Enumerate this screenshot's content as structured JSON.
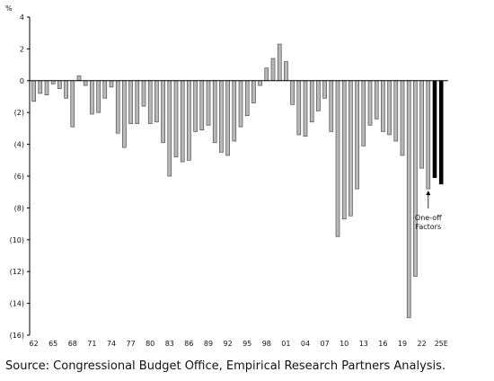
{
  "chart_data": {
    "type": "bar",
    "title": "",
    "ylabel": "%",
    "ylim": [
      -16,
      4
    ],
    "y_ticks": [
      4,
      2,
      0,
      -2,
      -4,
      -6,
      -8,
      -10,
      -12,
      -14,
      -16
    ],
    "y_tick_labels": [
      "4",
      "2",
      "0",
      "(2)",
      "(4)",
      "(6)",
      "(8)",
      "(10)",
      "(12)",
      "(14)",
      "(16)"
    ],
    "x_tick_labels": [
      "62",
      "65",
      "68",
      "71",
      "74",
      "77",
      "80",
      "83",
      "86",
      "89",
      "92",
      "95",
      "98",
      "01",
      "04",
      "07",
      "10",
      "13",
      "16",
      "19",
      "22",
      "25E"
    ],
    "categories": [
      "62",
      "63",
      "64",
      "65",
      "66",
      "67",
      "68",
      "69",
      "70",
      "71",
      "72",
      "73",
      "74",
      "75",
      "76",
      "77",
      "78",
      "79",
      "80",
      "81",
      "82",
      "83",
      "84",
      "85",
      "86",
      "87",
      "88",
      "89",
      "90",
      "91",
      "92",
      "93",
      "94",
      "95",
      "96",
      "97",
      "98",
      "99",
      "00",
      "01",
      "02",
      "03",
      "04",
      "05",
      "06",
      "07",
      "08",
      "09",
      "10",
      "11",
      "12",
      "13",
      "14",
      "15",
      "16",
      "17",
      "18",
      "19",
      "20",
      "21",
      "22",
      "23",
      "24",
      "25E"
    ],
    "values": [
      -1.3,
      -0.8,
      -0.9,
      -0.2,
      -0.5,
      -1.1,
      -2.9,
      0.3,
      -0.3,
      -2.1,
      -2.0,
      -1.1,
      -0.4,
      -3.3,
      -4.2,
      -2.7,
      -2.7,
      -1.6,
      -2.7,
      -2.6,
      -3.9,
      -6.0,
      -4.8,
      -5.1,
      -5.0,
      -3.2,
      -3.1,
      -2.8,
      -3.9,
      -4.5,
      -4.7,
      -3.8,
      -2.9,
      -2.2,
      -1.4,
      -0.3,
      0.8,
      1.4,
      2.3,
      1.2,
      -1.5,
      -3.4,
      -3.5,
      -2.6,
      -1.9,
      -1.1,
      -3.2,
      -9.8,
      -8.7,
      -8.5,
      -6.8,
      -4.1,
      -2.8,
      -2.4,
      -3.2,
      -3.4,
      -3.8,
      -4.7,
      -14.9,
      -12.3,
      -5.5,
      -6.8,
      -6.1,
      -6.5
    ],
    "series_colors": {
      "default": "#b8b8b8",
      "projection": "#000000"
    },
    "projection_categories": [
      "24",
      "25E"
    ],
    "annotation": {
      "text": [
        "One-off",
        "Factors"
      ],
      "category": "23"
    }
  },
  "source": "Source: Congressional Budget Office, Empirical Research Partners Analysis."
}
